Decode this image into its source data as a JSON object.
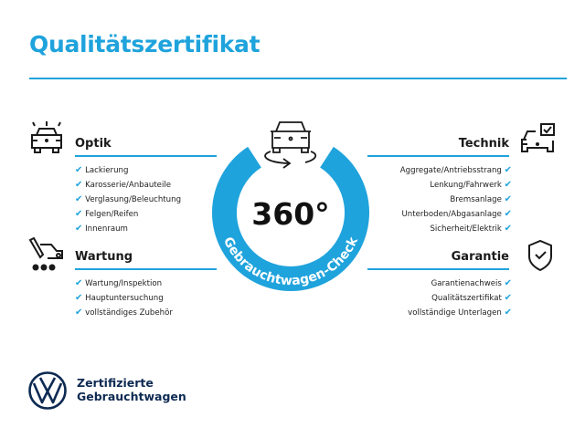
{
  "title": "Qualitätszertifikat",
  "accent_color": "#1fa3dc",
  "badge": {
    "main": "360°",
    "ring_text": "Gebrauchtwagen-Check",
    "icon": "car-rotate-icon"
  },
  "sections": {
    "optik": {
      "heading": "Optik",
      "icon": "car-lights-icon",
      "items": [
        "Lackierung",
        "Karosserie/Anbauteile",
        "Verglasung/Beleuchtung",
        "Felgen/Reifen",
        "Innenraum"
      ]
    },
    "wartung": {
      "heading": "Wartung",
      "icon": "service-car-icon",
      "items": [
        "Wartung/Inspektion",
        "Hauptuntersuchung",
        "vollständiges Zubehör"
      ]
    },
    "technik": {
      "heading": "Technik",
      "icon": "car-checkbox-icon",
      "items": [
        "Aggregate/Antriebsstrang",
        "Lenkung/Fahrwerk",
        "Bremsanlage",
        "Unterboden/Abgasanlage",
        "Sicherheit/Elektrik"
      ]
    },
    "garantie": {
      "heading": "Garantie",
      "icon": "shield-check-icon",
      "items": [
        "Garantienachweis",
        "Qualitätszertifikat",
        "vollständige Unterlagen"
      ]
    }
  },
  "check_mark": "✔",
  "footer": {
    "line1": "Zertifizierte",
    "line2": "Gebrauchtwagen",
    "logo": "vw-logo"
  }
}
